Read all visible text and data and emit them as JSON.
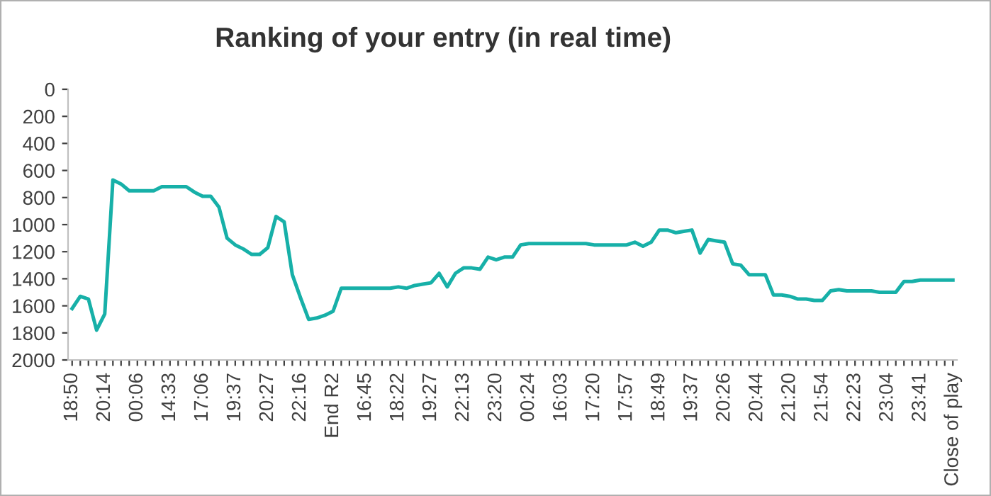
{
  "chart_data": {
    "type": "line",
    "title": "Ranking of your entry (in real time)",
    "categories": [
      "18:50",
      null,
      null,
      null,
      "20:14",
      null,
      null,
      null,
      "00:06",
      null,
      null,
      null,
      "14:33",
      null,
      null,
      null,
      "17:06",
      null,
      null,
      null,
      "19:37",
      null,
      null,
      null,
      "20:27",
      null,
      null,
      null,
      "22:16",
      null,
      null,
      null,
      "End R2",
      null,
      null,
      null,
      "16:45",
      null,
      null,
      null,
      "18:22",
      null,
      null,
      null,
      "19:27",
      null,
      null,
      null,
      "22:13",
      null,
      null,
      null,
      "23:20",
      null,
      null,
      null,
      "00:24",
      null,
      null,
      null,
      "16:03",
      null,
      null,
      null,
      "17:20",
      null,
      null,
      null,
      "17:57",
      null,
      null,
      null,
      "18:49",
      null,
      null,
      null,
      "19:37",
      null,
      null,
      null,
      "20:26",
      null,
      null,
      null,
      "20:44",
      null,
      null,
      null,
      "21:20",
      null,
      null,
      null,
      "21:54",
      null,
      null,
      null,
      "22:23",
      null,
      null,
      null,
      "23:04",
      null,
      null,
      null,
      "23:41",
      null,
      null,
      null,
      "Close of play"
    ],
    "series": [
      {
        "color": "#17b0a8",
        "values": [
          1620,
          1530,
          1550,
          1780,
          1660,
          670,
          700,
          750,
          750,
          750,
          750,
          720,
          720,
          720,
          720,
          760,
          790,
          790,
          870,
          1100,
          1150,
          1180,
          1220,
          1220,
          1170,
          940,
          980,
          1370,
          1540,
          1700,
          1690,
          1670,
          1640,
          1470,
          1470,
          1470,
          1470,
          1470,
          1470,
          1470,
          1460,
          1470,
          1450,
          1440,
          1430,
          1360,
          1460,
          1360,
          1320,
          1320,
          1330,
          1240,
          1260,
          1240,
          1240,
          1150,
          1140,
          1140,
          1140,
          1140,
          1140,
          1140,
          1140,
          1140,
          1150,
          1150,
          1150,
          1150,
          1150,
          1130,
          1160,
          1130,
          1040,
          1040,
          1060,
          1050,
          1040,
          1210,
          1110,
          1120,
          1130,
          1290,
          1300,
          1370,
          1370,
          1370,
          1520,
          1520,
          1530,
          1550,
          1550,
          1560,
          1560,
          1490,
          1480,
          1490,
          1490,
          1490,
          1490,
          1500,
          1500,
          1500,
          1420,
          1420,
          1410,
          1410,
          1410,
          1410,
          1410
        ]
      }
    ],
    "ylim": [
      2000,
      0
    ],
    "yticks": [
      0,
      200,
      400,
      600,
      800,
      1000,
      1200,
      1400,
      1600,
      1800,
      2000
    ],
    "grid": false,
    "legend": false,
    "marker": "none",
    "line_style": "solid"
  }
}
